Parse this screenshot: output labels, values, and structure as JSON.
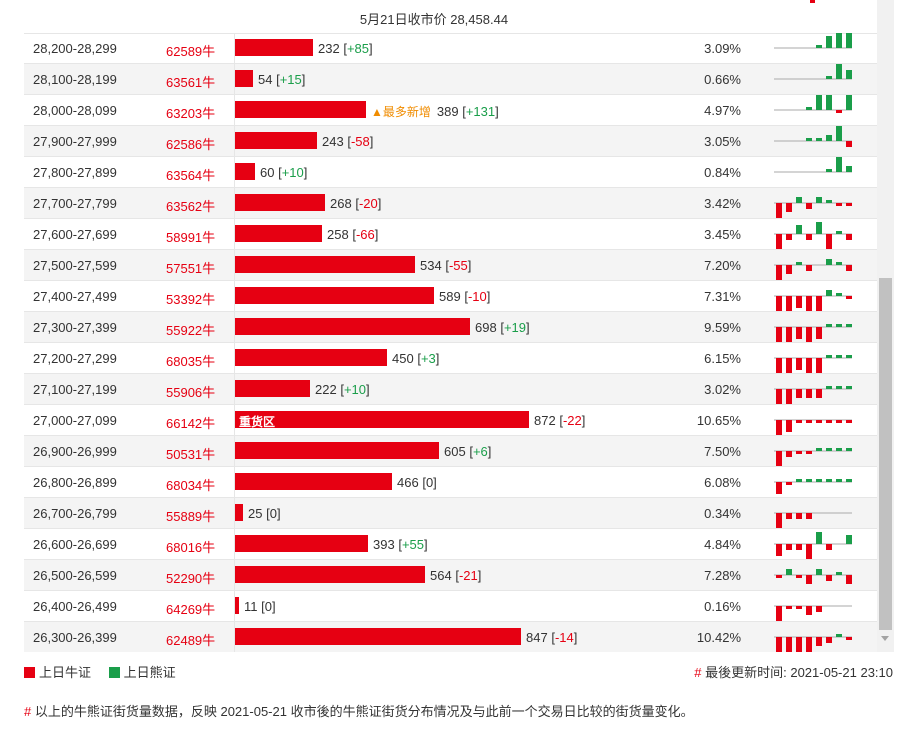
{
  "header": {
    "title": "5月21日收市价 28,458.44"
  },
  "colors": {
    "bull": "#e60012",
    "bear": "#1a9e4a",
    "hot_tag": "#f08c00"
  },
  "rows": [
    {
      "range": "28,200-28,299",
      "count": "62589牛",
      "value": 232,
      "change": "+85",
      "pct": "3.09%",
      "spark": [
        0,
        0,
        0,
        0,
        1,
        4,
        5,
        5
      ]
    },
    {
      "range": "28,100-28,199",
      "count": "63561牛",
      "value": 54,
      "change": "+15",
      "pct": "0.66%",
      "spark": [
        0,
        0,
        0,
        0,
        0,
        1,
        5,
        3
      ]
    },
    {
      "range": "28,000-28,099",
      "count": "63203牛",
      "value": 389,
      "change": "+131",
      "pct": "4.97%",
      "tag": "▲最多新增",
      "spark": [
        0,
        0,
        0,
        1,
        5,
        5,
        -1,
        5
      ]
    },
    {
      "range": "27,900-27,999",
      "count": "62586牛",
      "value": 243,
      "change": "-58",
      "pct": "3.05%",
      "spark": [
        0,
        0,
        0,
        1,
        1,
        2,
        5,
        -2
      ]
    },
    {
      "range": "27,800-27,899",
      "count": "63564牛",
      "value": 60,
      "change": "+10",
      "pct": "0.84%",
      "spark": [
        0,
        0,
        0,
        0,
        0,
        1,
        5,
        2
      ]
    },
    {
      "range": "27,700-27,799",
      "count": "63562牛",
      "value": 268,
      "change": "-20",
      "pct": "3.42%",
      "spark": [
        -5,
        -3,
        2,
        -2,
        2,
        1,
        -1,
        -1
      ]
    },
    {
      "range": "27,600-27,699",
      "count": "58991牛",
      "value": 258,
      "change": "-66",
      "pct": "3.45%",
      "spark": [
        -5,
        -2,
        3,
        -2,
        4,
        -5,
        1,
        -2
      ]
    },
    {
      "range": "27,500-27,599",
      "count": "57551牛",
      "value": 534,
      "change": "-55",
      "pct": "7.20%",
      "spark": [
        -5,
        -3,
        1,
        -2,
        0,
        2,
        1,
        -2
      ]
    },
    {
      "range": "27,400-27,499",
      "count": "53392牛",
      "value": 589,
      "change": "-10",
      "pct": "7.31%",
      "spark": [
        -5,
        -5,
        -4,
        -5,
        -5,
        2,
        1,
        -1
      ]
    },
    {
      "range": "27,300-27,399",
      "count": "55922牛",
      "value": 698,
      "change": "+19",
      "pct": "9.59%",
      "spark": [
        -5,
        -5,
        -4,
        -5,
        -4,
        1,
        1,
        1
      ]
    },
    {
      "range": "27,200-27,299",
      "count": "68035牛",
      "value": 450,
      "change": "+3",
      "pct": "6.15%",
      "spark": [
        -5,
        -5,
        -4,
        -5,
        -5,
        1,
        1,
        1
      ]
    },
    {
      "range": "27,100-27,199",
      "count": "55906牛",
      "value": 222,
      "change": "+10",
      "pct": "3.02%",
      "spark": [
        -5,
        -5,
        -3,
        -3,
        -3,
        1,
        1,
        1
      ]
    },
    {
      "range": "27,000-27,099",
      "count": "66142牛",
      "value": 872,
      "change": "-22",
      "pct": "10.65%",
      "zone": "重货区",
      "spark": [
        -5,
        -4,
        -1,
        -1,
        -1,
        -1,
        -1,
        -1
      ]
    },
    {
      "range": "26,900-26,999",
      "count": "50531牛",
      "value": 605,
      "change": "+6",
      "pct": "7.50%",
      "spark": [
        -5,
        -2,
        -1,
        -1,
        1,
        1,
        1,
        1
      ]
    },
    {
      "range": "26,800-26,899",
      "count": "68034牛",
      "value": 466,
      "change": "0",
      "pct": "6.08%",
      "spark": [
        -4,
        -1,
        1,
        1,
        1,
        1,
        1,
        1
      ]
    },
    {
      "range": "26,700-26,799",
      "count": "55889牛",
      "value": 25,
      "change": "0",
      "pct": "0.34%",
      "spark": [
        -5,
        -2,
        -2,
        -2,
        0,
        0,
        0,
        0
      ]
    },
    {
      "range": "26,600-26,699",
      "count": "68016牛",
      "value": 393,
      "change": "+55",
      "pct": "4.84%",
      "spark": [
        -4,
        -2,
        -2,
        -5,
        4,
        -2,
        0,
        3
      ]
    },
    {
      "range": "26,500-26,599",
      "count": "52290牛",
      "value": 564,
      "change": "-21",
      "pct": "7.28%",
      "spark": [
        -1,
        2,
        -1,
        -3,
        2,
        -2,
        1,
        -3
      ]
    },
    {
      "range": "26,400-26,499",
      "count": "64269牛",
      "value": 11,
      "change": "0",
      "pct": "0.16%",
      "spark": [
        -5,
        -1,
        -1,
        -3,
        -2,
        0,
        0,
        0
      ]
    },
    {
      "range": "26,300-26,399",
      "count": "62489牛",
      "value": 847,
      "change": "-14",
      "pct": "10.42%",
      "spark": [
        -5,
        -5,
        -5,
        -5,
        -3,
        -2,
        1,
        -1
      ]
    }
  ],
  "max_value": 872,
  "legend": {
    "bull_label": "上日牛证",
    "bear_label": "上日熊证"
  },
  "updated": {
    "hash": "#",
    "label": "最後更新时间: 2021-05-21 23:10"
  },
  "note": {
    "hash": "#",
    "text": "以上的牛熊证街货量数据，反映 2021-05-21 收市後的牛熊证街货分布情况及与此前一个交易日比较的街货量变化。"
  }
}
